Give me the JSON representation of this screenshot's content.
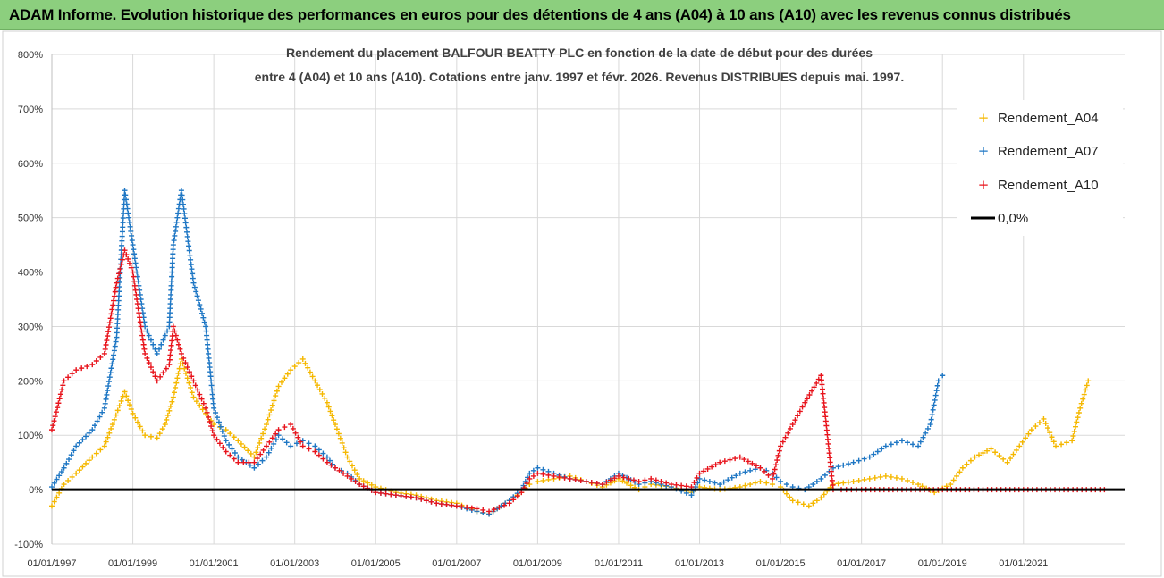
{
  "banner": {
    "title": "ADAM Informe. Evolution historique des performances en euros pour des détentions de 4 ans (A04) à 10 ans (A10) avec les revenus connus distribués"
  },
  "colors": {
    "banner_bg": "#8ccf7e",
    "A04": "#f5b800",
    "A07": "#1f77c4",
    "A10": "#e8141c",
    "zero": "#000000",
    "grid": "#d9d9d9"
  },
  "chart_data": {
    "type": "scatter",
    "title_line1": "Rendement du placement BALFOUR BEATTY PLC en fonction de la date de début pour des durées",
    "title_line2": "entre 4 (A04) et 10 ans (A10). Cotations entre janv. 1997 et févr. 2026. Revenus DISTRIBUES depuis mai. 1997.",
    "xlabel": "",
    "ylabel": "",
    "x_range": [
      1997.0,
      2023.5
    ],
    "ylim": [
      -100,
      800
    ],
    "y_ticks": [
      "-100%",
      "0%",
      "100%",
      "200%",
      "300%",
      "400%",
      "500%",
      "600%",
      "700%",
      "800%"
    ],
    "x_ticks": [
      "01/01/1997",
      "01/01/1999",
      "01/01/2001",
      "01/01/2003",
      "01/01/2005",
      "01/01/2007",
      "01/01/2009",
      "01/01/2011",
      "01/01/2013",
      "01/01/2015",
      "01/01/2017",
      "01/01/2019",
      "01/01/2021"
    ],
    "grid": true,
    "legend_position": "top-right",
    "series": [
      {
        "name": "Rendement_A04",
        "x": [
          1997.0,
          1997.3,
          1997.6,
          1998.0,
          1998.3,
          1998.5,
          1998.8,
          1999.0,
          1999.3,
          1999.6,
          1999.8,
          2000.0,
          2000.2,
          2000.5,
          2000.8,
          2001.0,
          2001.3,
          2001.6,
          2002.0,
          2002.3,
          2002.6,
          2002.9,
          2003.2,
          2003.5,
          2003.8,
          2004.0,
          2004.3,
          2004.6,
          2005.0,
          2005.5,
          2006.0,
          2006.5,
          2007.0,
          2007.5,
          2007.8,
          2008.3,
          2008.6,
          2008.8,
          2009.0,
          2009.4,
          2009.8,
          2010.2,
          2010.6,
          2011.0,
          2011.5,
          2011.8,
          2012.3,
          2012.8,
          2013.0,
          2013.5,
          2014.0,
          2014.5,
          2014.8,
          2015.0,
          2015.3,
          2015.7,
          2016.0,
          2016.3,
          2016.8,
          2017.2,
          2017.6,
          2018.0,
          2018.4,
          2018.8,
          2019.2,
          2019.5,
          2019.8,
          2020.2,
          2020.6,
          2020.9,
          2021.2,
          2021.5,
          2021.8,
          2022.2,
          2022.4,
          2022.6
        ],
        "values": [
          -30,
          10,
          30,
          60,
          80,
          120,
          180,
          140,
          100,
          95,
          120,
          170,
          240,
          170,
          140,
          120,
          110,
          90,
          60,
          120,
          190,
          220,
          240,
          200,
          160,
          120,
          60,
          20,
          5,
          -5,
          -10,
          -20,
          -25,
          -40,
          -45,
          -20,
          -5,
          10,
          15,
          20,
          25,
          15,
          5,
          20,
          0,
          10,
          5,
          -5,
          5,
          0,
          5,
          15,
          10,
          5,
          -20,
          -30,
          -15,
          10,
          15,
          20,
          25,
          20,
          10,
          -5,
          10,
          40,
          60,
          75,
          50,
          80,
          110,
          130,
          80,
          90,
          150,
          200
        ]
      },
      {
        "name": "Rendement_A07",
        "x": [
          1997.0,
          1997.3,
          1997.6,
          1998.0,
          1998.3,
          1998.6,
          1998.8,
          1999.0,
          1999.3,
          1999.6,
          1999.9,
          2000.0,
          2000.2,
          2000.5,
          2000.8,
          2001.0,
          2001.3,
          2001.6,
          2002.0,
          2002.3,
          2002.6,
          2002.9,
          2003.2,
          2003.5,
          2003.8,
          2004.0,
          2004.3,
          2004.6,
          2005.0,
          2005.5,
          2006.0,
          2006.5,
          2007.0,
          2007.5,
          2007.8,
          2008.3,
          2008.6,
          2008.8,
          2009.0,
          2009.4,
          2009.8,
          2010.2,
          2010.6,
          2011.0,
          2011.5,
          2011.8,
          2012.3,
          2012.8,
          2013.0,
          2013.5,
          2014.0,
          2014.5,
          2014.8,
          2015.0,
          2015.3,
          2015.6,
          2016.0,
          2016.3,
          2016.8,
          2017.2,
          2017.6,
          2018.0,
          2018.4,
          2018.7,
          2018.9,
          2019.0
        ],
        "values": [
          5,
          40,
          80,
          110,
          150,
          280,
          550,
          450,
          300,
          250,
          300,
          450,
          550,
          380,
          300,
          150,
          90,
          60,
          40,
          60,
          100,
          80,
          90,
          80,
          60,
          40,
          30,
          10,
          -5,
          -10,
          -15,
          -25,
          -30,
          -40,
          -45,
          -20,
          0,
          30,
          40,
          30,
          20,
          15,
          10,
          30,
          10,
          15,
          5,
          -10,
          20,
          10,
          30,
          40,
          30,
          15,
          5,
          0,
          20,
          40,
          50,
          60,
          80,
          90,
          80,
          120,
          200,
          210
        ]
      },
      {
        "name": "Rendement_A10",
        "x": [
          1997.0,
          1997.3,
          1997.6,
          1998.0,
          1998.3,
          1998.6,
          1998.8,
          1999.0,
          1999.3,
          1999.6,
          1999.9,
          2000.0,
          2000.2,
          2000.5,
          2000.8,
          2001.0,
          2001.3,
          2001.6,
          2002.0,
          2002.3,
          2002.6,
          2002.9,
          2003.2,
          2003.5,
          2003.8,
          2004.0,
          2004.3,
          2004.6,
          2005.0,
          2005.5,
          2006.0,
          2006.5,
          2007.0,
          2007.5,
          2007.8,
          2008.3,
          2008.6,
          2008.8,
          2009.0,
          2009.4,
          2009.8,
          2010.2,
          2010.6,
          2011.0,
          2011.5,
          2011.8,
          2012.3,
          2012.8,
          2013.0,
          2013.5,
          2014.0,
          2014.5,
          2014.8,
          2015.0,
          2015.3,
          2015.6,
          2016.0,
          2016.3,
          2016.5,
          2017.0,
          2018.0,
          2019.0,
          2020.0,
          2021.0,
          2022.0,
          2023.0
        ],
        "values": [
          110,
          200,
          220,
          230,
          250,
          380,
          440,
          400,
          250,
          200,
          230,
          300,
          250,
          200,
          150,
          100,
          70,
          50,
          50,
          80,
          110,
          120,
          80,
          70,
          50,
          40,
          25,
          10,
          -5,
          -10,
          -15,
          -25,
          -30,
          -35,
          -40,
          -25,
          -5,
          20,
          30,
          25,
          20,
          15,
          10,
          25,
          15,
          20,
          10,
          5,
          30,
          50,
          60,
          40,
          20,
          80,
          120,
          160,
          210,
          0,
          0,
          0,
          0,
          0,
          0,
          0,
          0,
          0
        ]
      },
      {
        "name": "0,0%",
        "x": [
          1997.0,
          2023.5
        ],
        "values": [
          0,
          0
        ]
      }
    ]
  }
}
